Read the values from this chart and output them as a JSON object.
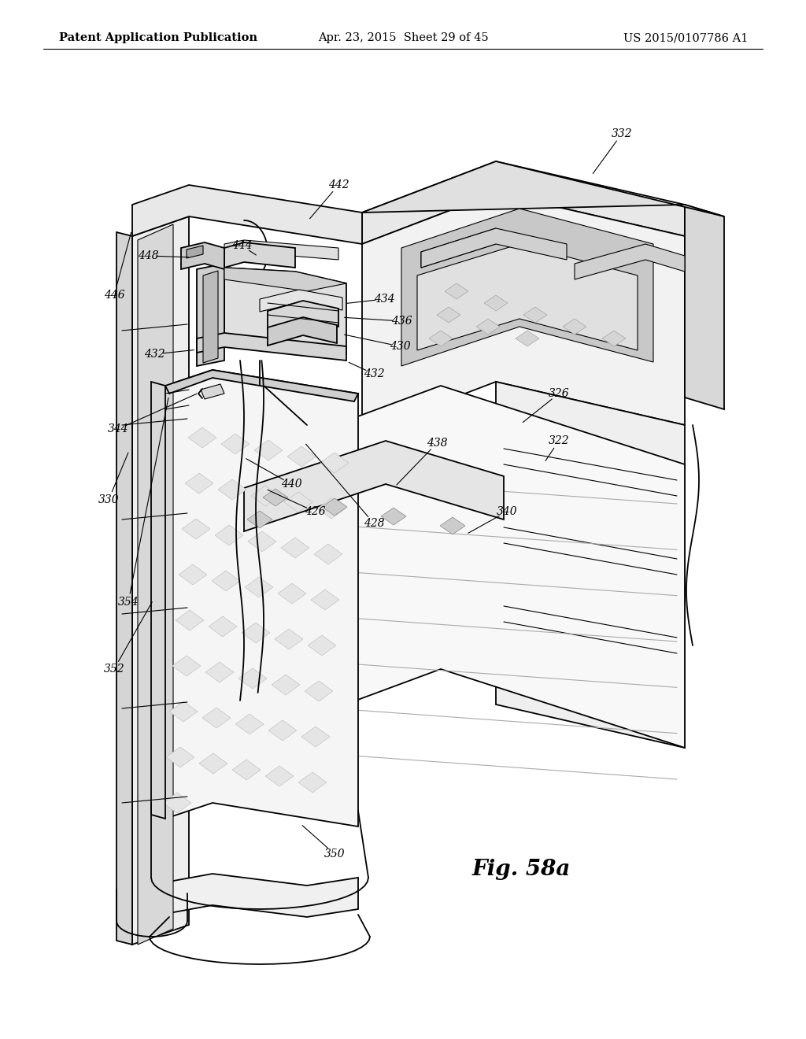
{
  "background_color": "#ffffff",
  "header_left": "Patent Application Publication",
  "header_center": "Apr. 23, 2015  Sheet 29 of 45",
  "header_right": "US 2015/0107786 A1",
  "figure_label": "Fig. 58a",
  "header_fontsize": 10.5,
  "label_fontsize": 10,
  "fig_label_fontsize": 20,
  "line_color": "#000000",
  "fill_light": "#f5f5f5",
  "fill_medium": "#e8e8e8",
  "fill_dark": "#d8d8d8",
  "fill_white": "#ffffff"
}
